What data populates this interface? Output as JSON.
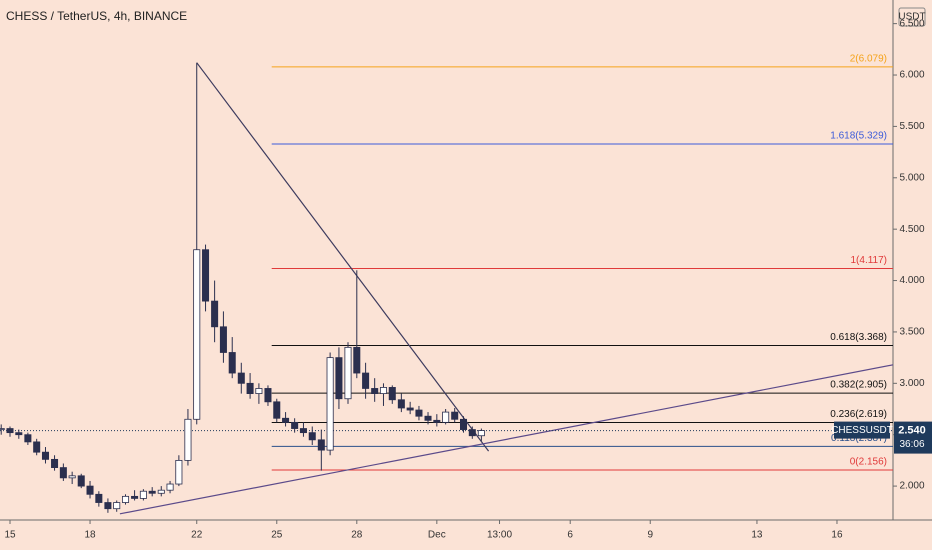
{
  "chart_data": {
    "type": "candlestick",
    "title": "CHESS / TetherUS, 4h, BINANCE",
    "y_unit": "USDT",
    "up_color": "#ffffff",
    "down_color": "#2b2f4e",
    "outline_color": "#2b2f4e",
    "x": [
      -0.33,
      0,
      0.33,
      0.67,
      1,
      1.33,
      1.67,
      2,
      2.33,
      2.67,
      3,
      3.33,
      3.67,
      4,
      4.33,
      4.67,
      5,
      5.33,
      5.67,
      6,
      6.33,
      6.67,
      7,
      7.33,
      7.67,
      8,
      8.33,
      8.67,
      9,
      9.33,
      9.67,
      10,
      10.33,
      10.67,
      11,
      11.33,
      11.67,
      12,
      12.33,
      12.67,
      13,
      13.33,
      13.67,
      14,
      14.33,
      14.67,
      15,
      15.33,
      15.67,
      16,
      16.33,
      16.67,
      17,
      17.33,
      17.67
    ],
    "open": [
      2.55,
      2.56,
      2.52,
      2.5,
      2.43,
      2.33,
      2.26,
      2.18,
      2.08,
      2.1,
      2.0,
      1.92,
      1.84,
      1.78,
      1.84,
      1.9,
      1.88,
      1.95,
      1.93,
      1.96,
      2.02,
      2.25,
      2.65,
      4.3,
      3.8,
      3.55,
      3.3,
      3.1,
      3.0,
      2.9,
      2.95,
      2.82,
      2.66,
      2.62,
      2.56,
      2.52,
      2.45,
      2.35,
      3.25,
      2.85,
      3.35,
      3.1,
      2.95,
      2.9,
      2.96,
      2.84,
      2.76,
      2.74,
      2.68,
      2.64,
      2.62,
      2.72,
      2.65,
      2.55,
      2.49
    ],
    "high": [
      2.6,
      2.58,
      2.55,
      2.52,
      2.46,
      2.38,
      2.3,
      2.22,
      2.14,
      2.12,
      2.05,
      1.95,
      1.88,
      1.86,
      1.92,
      1.96,
      1.97,
      1.99,
      2.0,
      2.05,
      2.3,
      2.75,
      6.12,
      4.35,
      4.0,
      3.7,
      3.45,
      3.2,
      3.1,
      3.0,
      2.98,
      2.85,
      2.72,
      2.66,
      2.62,
      2.58,
      2.55,
      3.3,
      3.35,
      3.4,
      4.1,
      3.2,
      3.05,
      3.0,
      2.98,
      2.9,
      2.82,
      2.78,
      2.72,
      2.7,
      2.75,
      2.76,
      2.68,
      2.58,
      2.56
    ],
    "low": [
      2.5,
      2.48,
      2.46,
      2.4,
      2.3,
      2.22,
      2.15,
      2.05,
      2.02,
      1.98,
      1.88,
      1.8,
      1.74,
      1.75,
      1.82,
      1.86,
      1.86,
      1.9,
      1.9,
      1.93,
      2.0,
      2.2,
      2.6,
      3.7,
      3.4,
      3.2,
      3.05,
      2.9,
      2.85,
      2.8,
      2.78,
      2.62,
      2.58,
      2.52,
      2.48,
      2.4,
      2.15,
      2.3,
      2.75,
      2.8,
      3.05,
      2.85,
      2.82,
      2.78,
      2.8,
      2.72,
      2.7,
      2.64,
      2.6,
      2.58,
      2.6,
      2.62,
      2.52,
      2.46,
      2.44
    ],
    "close": [
      2.56,
      2.52,
      2.5,
      2.43,
      2.33,
      2.26,
      2.18,
      2.08,
      2.1,
      2.0,
      1.92,
      1.84,
      1.78,
      1.84,
      1.9,
      1.88,
      1.95,
      1.93,
      1.96,
      2.02,
      2.25,
      2.65,
      4.3,
      3.8,
      3.55,
      3.3,
      3.1,
      3.0,
      2.9,
      2.95,
      2.82,
      2.66,
      2.62,
      2.56,
      2.52,
      2.45,
      2.35,
      3.25,
      2.85,
      3.35,
      3.1,
      2.95,
      2.9,
      2.96,
      2.84,
      2.76,
      2.74,
      2.68,
      2.64,
      2.62,
      2.72,
      2.65,
      2.55,
      2.49,
      2.54
    ],
    "xlim": [
      -0.375,
      33.1
    ],
    "ylim": [
      1.67,
      6.73
    ],
    "xticks": [
      {
        "value": 0,
        "label": "15"
      },
      {
        "value": 3,
        "label": "18"
      },
      {
        "value": 7,
        "label": "22"
      },
      {
        "value": 10,
        "label": "25"
      },
      {
        "value": 13,
        "label": "28"
      },
      {
        "value": 16,
        "label": "Dec"
      },
      {
        "value": 18.35,
        "label": "13:00"
      },
      {
        "value": 21,
        "label": "6"
      },
      {
        "value": 24,
        "label": "9"
      },
      {
        "value": 28,
        "label": "13"
      },
      {
        "value": 31,
        "label": "16"
      }
    ],
    "yticks": [
      {
        "value": 2,
        "label": "2.000"
      },
      {
        "value": 2.5,
        "label": "2.500"
      },
      {
        "value": 3,
        "label": "3.000"
      },
      {
        "value": 3.5,
        "label": "3.500"
      },
      {
        "value": 4,
        "label": "4.000"
      },
      {
        "value": 4.5,
        "label": "4.500"
      },
      {
        "value": 5,
        "label": "5.000"
      },
      {
        "value": 5.5,
        "label": "5.500"
      },
      {
        "value": 6,
        "label": "6.000"
      },
      {
        "value": 6.5,
        "label": "6.500"
      }
    ],
    "trendlines": [
      {
        "color": "#3d3b5e",
        "x": [
          7.0,
          17.94
        ],
        "y": [
          6.12,
          2.34
        ]
      },
      {
        "color": "#5b4a8a",
        "x": [
          4.12,
          33.1
        ],
        "y": [
          1.73,
          3.18
        ]
      }
    ],
    "fib_x_start": 9.81,
    "fib_levels": [
      {
        "label": "2(6.079)",
        "value": 6.079,
        "color": "#f5a31a"
      },
      {
        "label": "1.618(5.329)",
        "value": 5.329,
        "color": "#3d5bd9"
      },
      {
        "label": "1(4.117)",
        "value": 4.117,
        "color": "#e03a3a"
      },
      {
        "label": "0.618(3.368)",
        "value": 3.368,
        "color": "#111111"
      },
      {
        "label": "0.382(2.905)",
        "value": 2.905,
        "color": "#111111"
      },
      {
        "label": "0.236(2.619)",
        "value": 2.619,
        "color": "#111111"
      },
      {
        "label": "0.118(2.387)",
        "value": 2.387,
        "color": "#2a4f8a"
      },
      {
        "label": "0(2.156)",
        "value": 2.156,
        "color": "#e03a3a"
      }
    ],
    "last_price": {
      "symbol": "CHESSUSDT",
      "value": 2.54,
      "value_label": "2.540",
      "countdown": "36:06",
      "color": "#1f3a5c"
    }
  }
}
